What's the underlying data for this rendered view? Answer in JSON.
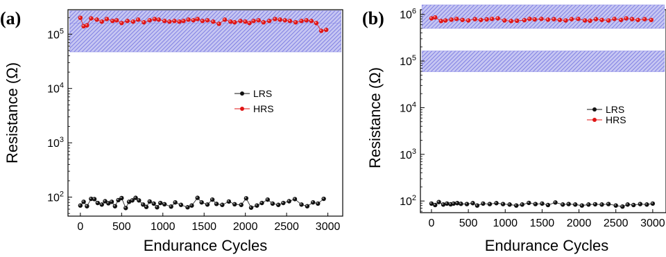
{
  "chart_data": [
    {
      "type": "scatter",
      "panel_label": "(a)",
      "xlabel": "Endurance Cycles",
      "ylabel": "Resistance (Ω)",
      "xlim": [
        -150,
        3180
      ],
      "ylog_range": [
        1.65,
        5.45
      ],
      "xticks": [
        0,
        500,
        1000,
        1500,
        2000,
        2500,
        3000
      ],
      "yticks": [
        {
          "value": 100,
          "base": "10",
          "exp": "2"
        },
        {
          "value": 1000,
          "base": "10",
          "exp": "3"
        },
        {
          "value": 10000,
          "base": "10",
          "exp": "4"
        },
        {
          "value": 100000,
          "base": "10",
          "exp": "5"
        }
      ],
      "legend": {
        "placement": "center-right",
        "entries": [
          "LRS",
          "HRS"
        ]
      },
      "bands": [
        {
          "x": [
            -130,
            3160
          ],
          "y": [
            76000,
            270000
          ],
          "color": "#8a8ae6"
        },
        {
          "x": [
            -130,
            3160
          ],
          "y": [
            47000,
            160000
          ],
          "color": "#8a8ae6"
        }
      ],
      "series": [
        {
          "name": "LRS",
          "color": "#111111",
          "x": [
            0,
            40,
            80,
            130,
            170,
            210,
            260,
            300,
            340,
            380,
            420,
            460,
            500,
            550,
            590,
            630,
            670,
            710,
            760,
            800,
            840,
            890,
            930,
            970,
            1020,
            1100,
            1150,
            1220,
            1300,
            1350,
            1420,
            1470,
            1540,
            1600,
            1650,
            1720,
            1800,
            1870,
            1950,
            2010,
            2070,
            2140,
            2200,
            2270,
            2330,
            2400,
            2460,
            2530,
            2600,
            2680,
            2750,
            2820,
            2880,
            2950
          ],
          "y": [
            70,
            82,
            68,
            93,
            92,
            78,
            73,
            84,
            77,
            82,
            68,
            88,
            96,
            63,
            82,
            87,
            97,
            87,
            73,
            66,
            83,
            76,
            65,
            78,
            74,
            67,
            80,
            72,
            65,
            70,
            97,
            80,
            73,
            90,
            75,
            72,
            83,
            74,
            72,
            95,
            64,
            70,
            78,
            90,
            76,
            72,
            78,
            84,
            92,
            73,
            68,
            80,
            76,
            93
          ]
        },
        {
          "name": "HRS",
          "color": "#e01515",
          "x": [
            0,
            40,
            80,
            130,
            200,
            260,
            320,
            390,
            440,
            500,
            570,
            640,
            700,
            770,
            840,
            900,
            950,
            1020,
            1080,
            1140,
            1200,
            1250,
            1310,
            1370,
            1420,
            1480,
            1540,
            1610,
            1680,
            1750,
            1820,
            1870,
            1940,
            2000,
            2050,
            2100,
            2160,
            2220,
            2290,
            2360,
            2420,
            2480,
            2540,
            2610,
            2680,
            2740,
            2800,
            2860,
            2920,
            2980
          ],
          "y": [
            200000,
            140000,
            145000,
            195000,
            185000,
            170000,
            190000,
            175000,
            180000,
            160000,
            175000,
            170000,
            185000,
            165000,
            180000,
            190000,
            185000,
            175000,
            170000,
            175000,
            170000,
            175000,
            185000,
            180000,
            190000,
            175000,
            180000,
            170000,
            155000,
            185000,
            170000,
            165000,
            175000,
            170000,
            160000,
            175000,
            180000,
            165000,
            175000,
            190000,
            185000,
            180000,
            175000,
            165000,
            175000,
            180000,
            175000,
            160000,
            115000,
            120000
          ]
        }
      ]
    },
    {
      "type": "scatter",
      "panel_label": "(b)",
      "xlabel": "Endurance Cycles",
      "ylabel": "Resistance (Ω)",
      "xlim": [
        -150,
        3180
      ],
      "ylog_range": [
        1.75,
        6.1
      ],
      "xticks": [
        0,
        500,
        1000,
        1500,
        2000,
        2500,
        3000
      ],
      "yticks": [
        {
          "value": 100,
          "base": "10",
          "exp": "2"
        },
        {
          "value": 1000,
          "base": "10",
          "exp": "3"
        },
        {
          "value": 10000,
          "base": "10",
          "exp": "4"
        },
        {
          "value": 100000,
          "base": "10",
          "exp": "5"
        },
        {
          "value": 1000000,
          "base": "10",
          "exp": "6"
        }
      ],
      "legend": {
        "placement": "center-right",
        "entries": [
          "LRS",
          "HRS"
        ]
      },
      "bands": [
        {
          "x": [
            -130,
            3160
          ],
          "y": [
            500000,
            1600000
          ],
          "color": "#8a8ae6"
        },
        {
          "x": [
            -130,
            3160
          ],
          "y": [
            59000,
            165000
          ],
          "color": "#8a8ae6"
        }
      ],
      "series": [
        {
          "name": "LRS",
          "color": "#111111",
          "x": [
            0,
            50,
            100,
            160,
            210,
            260,
            300,
            350,
            400,
            480,
            560,
            620,
            700,
            790,
            880,
            970,
            1060,
            1150,
            1230,
            1320,
            1410,
            1500,
            1580,
            1680,
            1780,
            1860,
            1950,
            2040,
            2130,
            2220,
            2310,
            2400,
            2500,
            2590,
            2660,
            2740,
            2830,
            2920,
            3000
          ],
          "y": [
            88,
            82,
            95,
            84,
            88,
            85,
            88,
            90,
            87,
            86,
            90,
            80,
            88,
            86,
            90,
            86,
            84,
            80,
            84,
            91,
            86,
            88,
            82,
            93,
            84,
            86,
            84,
            80,
            84,
            85,
            84,
            86,
            80,
            76,
            84,
            82,
            86,
            84,
            88
          ]
        },
        {
          "name": "HRS",
          "color": "#e01515",
          "x": [
            0,
            50,
            130,
            190,
            270,
            340,
            420,
            500,
            590,
            670,
            750,
            820,
            900,
            990,
            1080,
            1160,
            1260,
            1330,
            1400,
            1490,
            1580,
            1660,
            1740,
            1820,
            1900,
            1990,
            2080,
            2150,
            2230,
            2310,
            2400,
            2480,
            2570,
            2640,
            2720,
            2800,
            2890,
            2980
          ],
          "y": [
            820000,
            860000,
            720000,
            740000,
            770000,
            800000,
            760000,
            740000,
            790000,
            760000,
            780000,
            800000,
            820000,
            740000,
            720000,
            730000,
            750000,
            800000,
            780000,
            800000,
            770000,
            790000,
            760000,
            740000,
            790000,
            800000,
            740000,
            730000,
            790000,
            760000,
            740000,
            800000,
            760000,
            820000,
            790000,
            760000,
            790000,
            760000
          ]
        }
      ]
    }
  ]
}
